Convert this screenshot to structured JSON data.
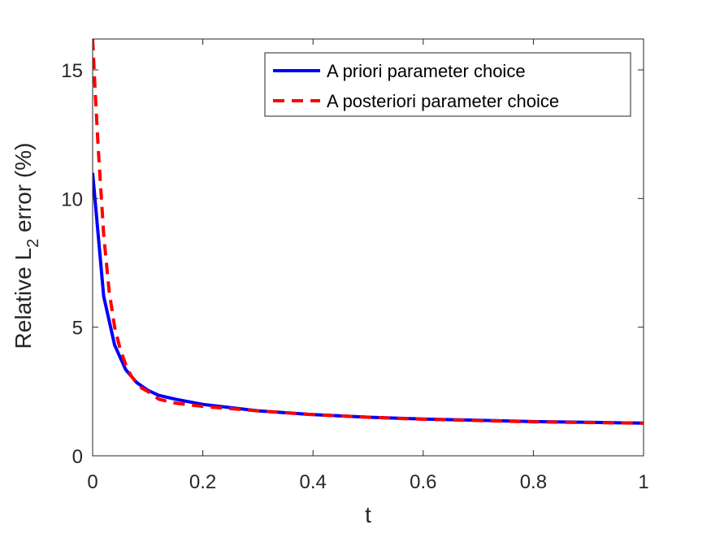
{
  "chart_data": {
    "type": "line",
    "title": "",
    "xlabel": "t",
    "ylabel_main": "Relative L",
    "ylabel_sub": "2",
    "ylabel_rest": " error (%)",
    "xlim": [
      0,
      1
    ],
    "ylim": [
      0,
      16.2
    ],
    "xticks": [
      0,
      0.2,
      0.4,
      0.6,
      0.8,
      1
    ],
    "xtick_labels": [
      "0",
      "0.2",
      "0.4",
      "0.6",
      "0.8",
      "1"
    ],
    "yticks": [
      0,
      5,
      10,
      15
    ],
    "ytick_labels": [
      "0",
      "5",
      "10",
      "15"
    ],
    "grid": false,
    "legend_position": "top-right",
    "series": [
      {
        "name": "A priori parameter choice",
        "color": "#0000ff",
        "style": "solid",
        "x": [
          0,
          0.02,
          0.04,
          0.06,
          0.08,
          0.1,
          0.12,
          0.15,
          0.2,
          0.3,
          0.4,
          0.5,
          0.6,
          0.7,
          0.8,
          0.9,
          1.0
        ],
        "y": [
          11.0,
          6.2,
          4.3,
          3.35,
          2.85,
          2.55,
          2.35,
          2.2,
          2.0,
          1.75,
          1.6,
          1.5,
          1.43,
          1.38,
          1.33,
          1.3,
          1.27
        ]
      },
      {
        "name": "A posteriori parameter choice",
        "color": "#ff0000",
        "style": "dashed",
        "x": [
          0,
          0.005,
          0.01,
          0.02,
          0.03,
          0.04,
          0.05,
          0.06,
          0.07,
          0.08,
          0.09,
          0.1,
          0.12,
          0.15,
          0.2,
          0.3,
          0.4,
          0.5,
          0.6,
          0.7,
          0.8,
          0.9,
          1.0
        ],
        "y": [
          16.2,
          14.0,
          12.0,
          8.6,
          6.4,
          5.0,
          4.15,
          3.55,
          3.1,
          2.82,
          2.62,
          2.5,
          2.2,
          2.05,
          1.92,
          1.75,
          1.6,
          1.5,
          1.42,
          1.37,
          1.32,
          1.29,
          1.27
        ]
      }
    ]
  }
}
